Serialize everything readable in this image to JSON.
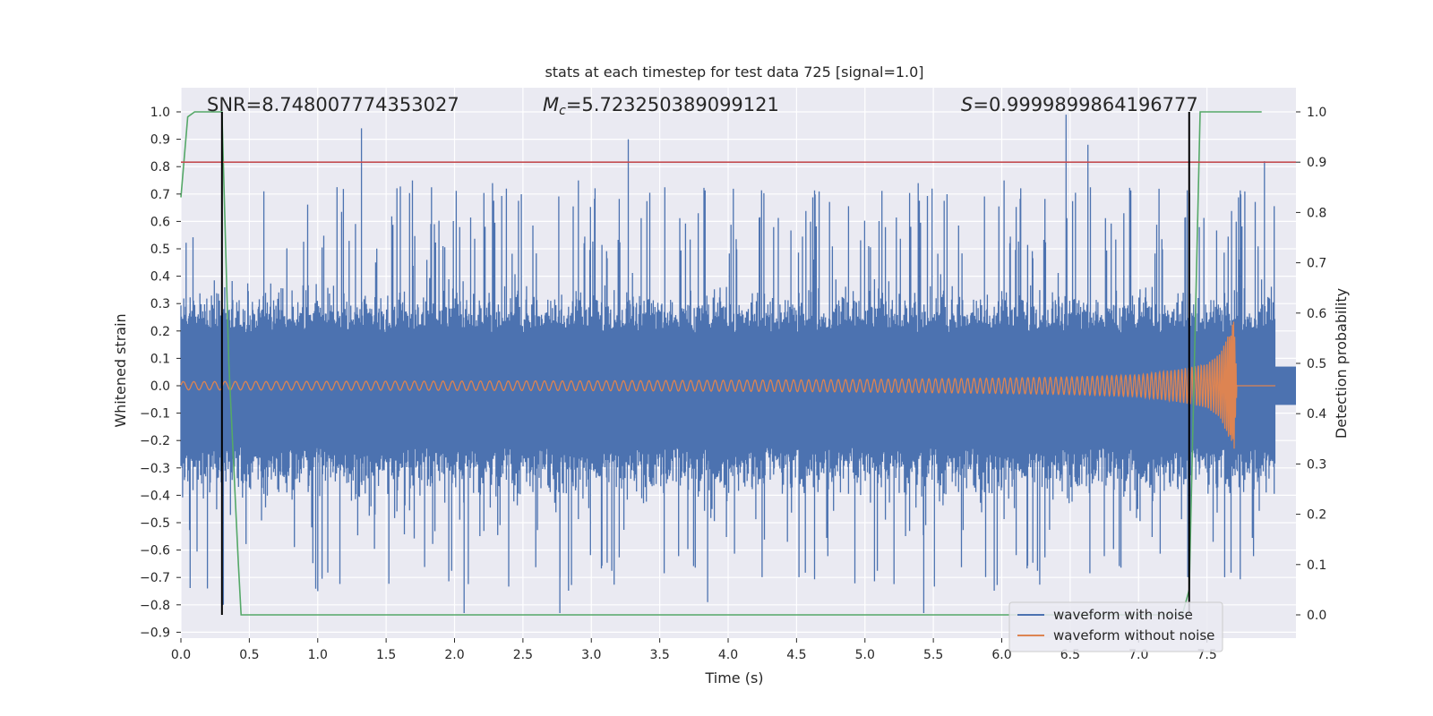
{
  "chart_data": {
    "type": "line",
    "title": "stats at each timestep for test data 725 [signal=1.0]",
    "xlabel": "Time (s)",
    "ylabel": "Whitened strain",
    "y2label": "Detection probability",
    "xlim": [
      0.0,
      8.0
    ],
    "ylim": [
      -0.93,
      1.05
    ],
    "y2lim": [
      -0.05,
      1.05
    ],
    "x_ticks": [
      "0.0",
      "0.5",
      "1.0",
      "1.5",
      "2.0",
      "2.5",
      "3.0",
      "3.5",
      "4.0",
      "4.5",
      "5.0",
      "5.5",
      "6.0",
      "6.5",
      "7.0",
      "7.5"
    ],
    "y_ticks": [
      "1.0",
      "0.9",
      "0.8",
      "0.7",
      "0.6",
      "0.5",
      "0.4",
      "0.3",
      "0.2",
      "0.1",
      "0.0",
      "−0.1",
      "−0.2",
      "−0.3",
      "−0.4",
      "−0.5",
      "−0.6",
      "−0.7",
      "−0.8",
      "−0.9"
    ],
    "y2_ticks": [
      "1.0",
      "0.9",
      "0.8",
      "0.7",
      "0.6",
      "0.5",
      "0.4",
      "0.3",
      "0.2",
      "0.1",
      "0.0"
    ],
    "grid": true,
    "legend_position": "bottom-right",
    "annotations": {
      "snr": "SNR=8.748007774353027",
      "mc_symbol": "M",
      "mc_sub": "c",
      "mc_value": "=5.723250389099121",
      "s_symbol": "S",
      "s_value": "=0.9999899864196777"
    },
    "series": [
      {
        "name": "waveform with noise",
        "color": "#4c72b0",
        "axis": "left",
        "envelope": {
          "typical_upper": 0.35,
          "typical_lower": -0.4,
          "x_range": [
            0.0,
            8.0
          ]
        },
        "peaks": [
          {
            "x": 0.3,
            "y": 1.0
          },
          {
            "x": 1.32,
            "y": 0.94
          },
          {
            "x": 3.27,
            "y": 0.9
          },
          {
            "x": 6.47,
            "y": 0.99
          },
          {
            "x": 6.63,
            "y": 0.88
          },
          {
            "x": 7.92,
            "y": 0.82
          },
          {
            "x": 2.07,
            "y": -0.83
          },
          {
            "x": 2.77,
            "y": -0.83
          },
          {
            "x": 5.43,
            "y": -0.83
          },
          {
            "x": 0.31,
            "y": -0.8
          },
          {
            "x": 1.0,
            "y": -0.75
          },
          {
            "x": 3.85,
            "y": -0.79
          }
        ]
      },
      {
        "name": "waveform without noise",
        "color": "#dd8452",
        "axis": "left",
        "x": [
          0.0,
          1.0,
          2.0,
          3.0,
          4.0,
          5.0,
          6.0,
          6.5,
          7.0,
          7.3,
          7.5,
          7.6,
          7.65,
          7.7,
          7.72,
          8.0
        ],
        "amplitude": [
          0.015,
          0.016,
          0.017,
          0.018,
          0.02,
          0.023,
          0.028,
          0.032,
          0.04,
          0.06,
          0.08,
          0.12,
          0.18,
          0.24,
          0.0,
          0.0
        ]
      },
      {
        "name": "detection probability",
        "color": "#55a868",
        "axis": "right",
        "x": [
          0.0,
          0.05,
          0.1,
          0.2,
          0.3,
          0.35,
          0.42,
          0.44,
          1.0,
          7.32,
          7.37,
          7.45,
          7.9
        ],
        "y": [
          0.83,
          0.99,
          1.0,
          1.0,
          1.0,
          0.5,
          0.1,
          0.0,
          0.0,
          0.0,
          0.05,
          1.0,
          1.0
        ]
      },
      {
        "name": "threshold",
        "color": "#c44e52",
        "axis": "right",
        "y": 0.9
      }
    ],
    "markers": [
      {
        "name": "detection-start",
        "x": 0.3,
        "y2_range": [
          0.0,
          1.0
        ],
        "color": "#000000"
      },
      {
        "name": "detection-end",
        "x": 7.37,
        "y2_range": [
          0.0,
          1.0
        ],
        "color": "#000000"
      }
    ],
    "legend": [
      {
        "label": "waveform with noise",
        "color": "#4c72b0"
      },
      {
        "label": "waveform without noise",
        "color": "#dd8452"
      }
    ]
  }
}
